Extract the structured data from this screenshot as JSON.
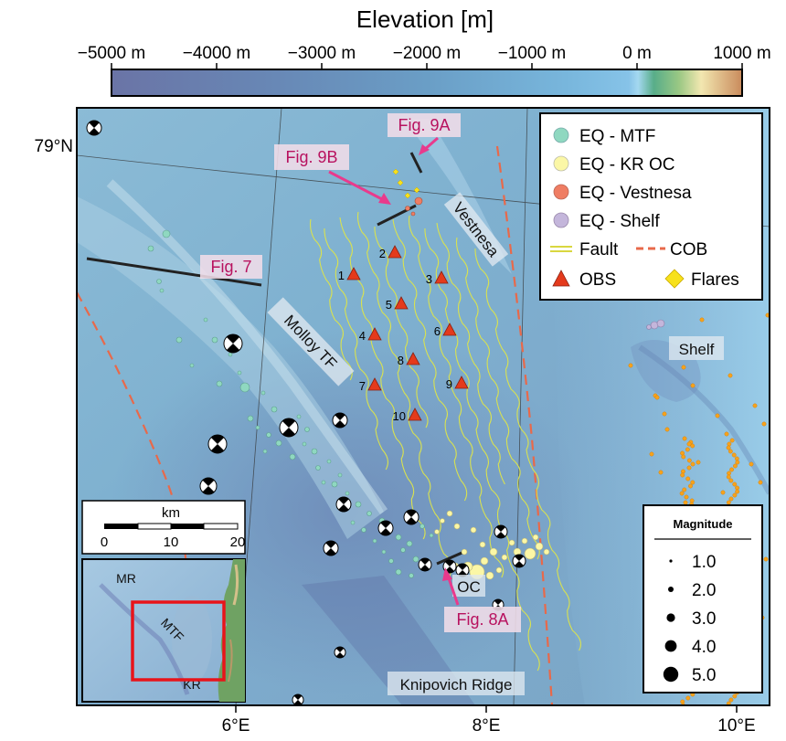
{
  "colorbar": {
    "title": "Elevation [m]",
    "ticks": [
      "−5000 m",
      "−4000 m",
      "−3000 m",
      "−2000 m",
      "−1000 m",
      "0 m",
      "1000 m"
    ],
    "range": [
      -5000,
      1000
    ]
  },
  "axes": {
    "lat_label": "79°N",
    "lon_labels": [
      "6°E",
      "8°E",
      "10°E"
    ]
  },
  "labels": {
    "molloy": "Molloy TF",
    "vestnesa": "Vestnesa",
    "shelf": "Shelf",
    "oc": "OC",
    "knipovich": "Knipovich Ridge",
    "fig7": "Fig. 7",
    "fig9a": "Fig. 9A",
    "fig9b": "Fig. 9B",
    "fig8a": "Fig. 8A"
  },
  "obs": [
    "1",
    "2",
    "3",
    "4",
    "5",
    "6",
    "7",
    "8",
    "9",
    "10"
  ],
  "legend": {
    "eq_mtf": "EQ - MTF",
    "eq_kr": "EQ - KR OC",
    "eq_vestnesa": "EQ - Vestnesa",
    "eq_shelf": "EQ - Shelf",
    "fault": "Fault",
    "cob": "COB",
    "obs": "OBS",
    "flares": "Flares"
  },
  "magnitude": {
    "title": "Magnitude",
    "values": [
      "1.0",
      "2.0",
      "3.0",
      "4.0",
      "5.0"
    ]
  },
  "scalebar": {
    "unit": "km",
    "ticks": [
      "0",
      "10",
      "20"
    ]
  },
  "inset": {
    "mr": "MR",
    "mtf": "MTF",
    "kr": "KR"
  },
  "colors": {
    "eq_mtf": "#8fd8c0",
    "eq_kr": "#fbf7a6",
    "eq_vestnesa": "#ef7d63",
    "eq_shelf": "#c4b6db",
    "fault": "#e4e35a",
    "cob": "#e8694a",
    "obs": "#e43a1c",
    "flares": "#f7e11b",
    "annotation": "#e93a8c"
  }
}
